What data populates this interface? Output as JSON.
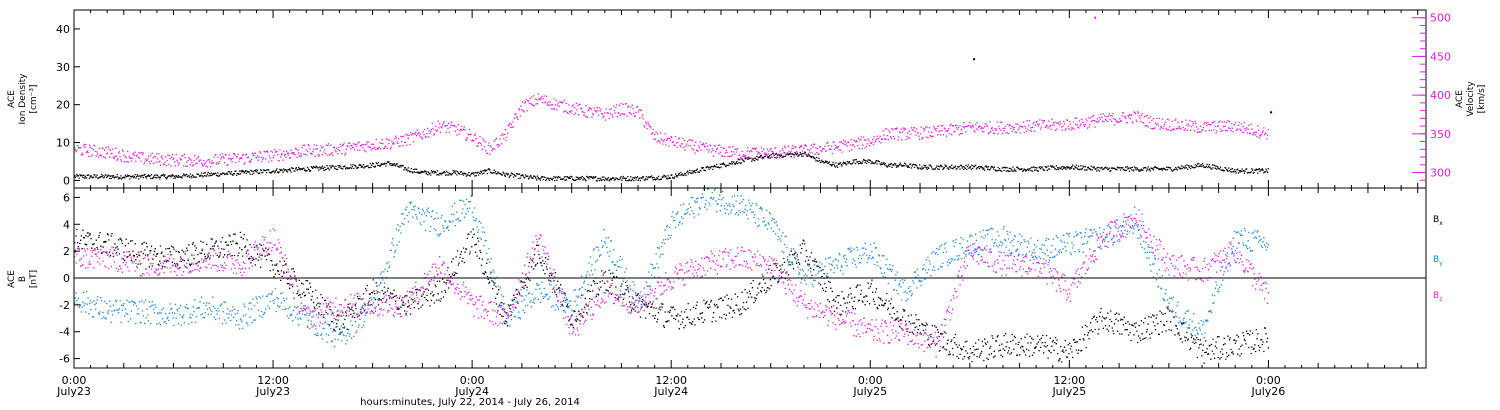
{
  "colors": {
    "black": "#000000",
    "magenta": "#e020e0",
    "blue": "#1a86e0"
  },
  "chart_data": [
    {
      "type": "scatter",
      "panel": "top",
      "ylabel_lines": [
        "ACE",
        "Ion Density",
        "[cm⁻³]"
      ],
      "ylim": [
        -2,
        45
      ],
      "yticks": [
        0,
        10,
        20,
        30,
        40
      ],
      "y2label_lines": [
        "ACE",
        "Velocity",
        "[km/s]"
      ],
      "y2lim": [
        280,
        510
      ],
      "y2ticks": [
        300,
        350,
        400,
        450,
        500
      ],
      "series": [
        {
          "color": "#000000",
          "axis": "left",
          "x": [
            0,
            2,
            4,
            6,
            8,
            10,
            12,
            14,
            16,
            18,
            19,
            20,
            21,
            22,
            23,
            24,
            25,
            26,
            27,
            28,
            29,
            30,
            31,
            32,
            33,
            34,
            36,
            38,
            40,
            42,
            44,
            45,
            46,
            47,
            48,
            49,
            50,
            51,
            52,
            54,
            56,
            58,
            60,
            62,
            64,
            66,
            68,
            70,
            72
          ],
          "y": [
            1,
            1,
            1,
            1,
            1.5,
            2,
            2.5,
            3,
            3.5,
            4,
            4.5,
            3,
            2,
            2,
            2,
            1.5,
            2.5,
            1.5,
            1,
            0.5,
            0.5,
            0.5,
            0.5,
            0.5,
            0.5,
            0.5,
            1,
            3,
            5,
            6.5,
            7,
            5,
            4,
            5,
            5,
            4,
            4,
            3.5,
            3.5,
            3.5,
            3,
            3,
            3.5,
            3,
            3,
            3,
            4,
            2.5,
            2.5
          ]
        },
        {
          "color": "#e020e0",
          "axis": "right",
          "x": [
            0,
            1,
            2,
            3,
            4,
            6,
            8,
            10,
            12,
            14,
            16,
            18,
            19,
            20,
            21,
            22,
            23,
            24,
            25,
            26,
            27,
            28,
            29,
            30,
            31,
            32,
            33,
            34,
            35,
            36,
            37,
            38,
            40,
            42,
            44,
            46,
            48,
            49,
            50,
            52,
            54,
            56,
            58,
            60,
            62,
            64,
            65,
            66,
            67,
            68,
            70,
            72
          ],
          "y": [
            330,
            328,
            326,
            322,
            318,
            316,
            315,
            318,
            322,
            328,
            330,
            336,
            338,
            342,
            350,
            360,
            356,
            346,
            330,
            348,
            385,
            395,
            388,
            383,
            378,
            375,
            382,
            378,
            345,
            340,
            335,
            330,
            325,
            325,
            328,
            333,
            340,
            350,
            350,
            352,
            358,
            358,
            360,
            362,
            368,
            372,
            364,
            362,
            360,
            358,
            360,
            350
          ]
        }
      ],
      "outliers": [
        {
          "x": 61.5,
          "y": 500,
          "color": "#e020e0",
          "axis": "right"
        },
        {
          "x": 54.2,
          "y": 32,
          "color": "#000000",
          "axis": "left"
        },
        {
          "x": 72.1,
          "y": 18,
          "color": "#000000",
          "axis": "left"
        }
      ]
    },
    {
      "type": "scatter",
      "panel": "bottom",
      "ylabel_lines": [
        "ACE",
        "B",
        "[nT]"
      ],
      "ylim": [
        -6.7,
        6.7
      ],
      "yticks": [
        -6,
        -4,
        -2,
        0,
        2,
        4,
        6
      ],
      "zero_line": true,
      "series": [
        {
          "name": "Bx",
          "color": "#000000",
          "x": [
            0,
            2,
            4,
            6,
            8,
            10,
            12,
            14,
            16,
            18,
            20,
            22,
            24,
            26,
            28,
            30,
            32,
            34,
            36,
            38,
            40,
            42,
            44,
            46,
            48,
            50,
            52,
            54,
            56,
            58,
            60,
            62,
            64,
            66,
            68,
            70,
            72
          ],
          "y": [
            2.8,
            2.5,
            1.8,
            1.5,
            2,
            2.5,
            1,
            -1,
            -3.5,
            -1,
            -2,
            -1,
            3,
            -3,
            2,
            -3,
            0,
            -2,
            -3,
            -2.5,
            -2,
            0,
            2,
            -2,
            -1,
            -3,
            -4.5,
            -5.5,
            -5,
            -5,
            -5.5,
            -3,
            -4,
            -3,
            -5.5,
            -5,
            -4.5
          ]
        },
        {
          "name": "By",
          "color": "#1a86e0",
          "x": [
            0,
            2,
            4,
            6,
            8,
            10,
            12,
            14,
            16,
            18,
            20,
            22,
            24,
            26,
            28,
            30,
            32,
            34,
            36,
            38,
            40,
            42,
            44,
            46,
            48,
            50,
            52,
            54,
            56,
            58,
            60,
            62,
            64,
            66,
            68,
            70,
            72
          ],
          "y": [
            -1.5,
            -2.5,
            -2.5,
            -2.8,
            -2.2,
            -3,
            -1.5,
            -3,
            -4.5,
            -2,
            5,
            4,
            5.5,
            -3,
            -1,
            -2,
            3,
            -2,
            4,
            6,
            5.5,
            4,
            0,
            1,
            2,
            -1,
            1.5,
            2.5,
            3,
            2,
            2.5,
            3,
            4,
            -2,
            -4,
            3,
            2.5
          ]
        },
        {
          "name": "Bz",
          "color": "#e020e0",
          "x": [
            0,
            2,
            4,
            6,
            8,
            10,
            12,
            14,
            16,
            18,
            20,
            22,
            24,
            26,
            28,
            30,
            32,
            34,
            36,
            38,
            40,
            42,
            44,
            46,
            48,
            50,
            52,
            54,
            56,
            58,
            60,
            62,
            64,
            66,
            68,
            70,
            72
          ],
          "y": [
            1.5,
            1.5,
            1,
            1,
            1.5,
            1,
            3,
            -3,
            -2,
            -2,
            -2,
            1,
            -2,
            -3,
            3,
            -4,
            -1,
            -2,
            0,
            1,
            1.5,
            1,
            -2,
            -3,
            -4,
            -4,
            -5,
            2,
            1,
            1,
            -1,
            3,
            4.5,
            1,
            0.5,
            2,
            -1.5
          ]
        }
      ],
      "legend": [
        "B",
        "B",
        "B"
      ],
      "legend_subs": [
        "x",
        "y",
        "z"
      ],
      "legend_placement": "right"
    }
  ],
  "x_axis": {
    "xlim": [
      0,
      81.5
    ],
    "major_ticks": [
      0,
      12,
      24,
      36,
      48,
      60,
      72
    ],
    "tick_times": [
      "0:00",
      "12:00",
      "0:00",
      "12:00",
      "0:00",
      "12:00",
      "0:00"
    ],
    "tick_dates": [
      "July23",
      "July23",
      "July24",
      "July24",
      "July25",
      "July25",
      "July26"
    ],
    "title": "hours:minutes, July 22, 2014 - July 26, 2014"
  }
}
